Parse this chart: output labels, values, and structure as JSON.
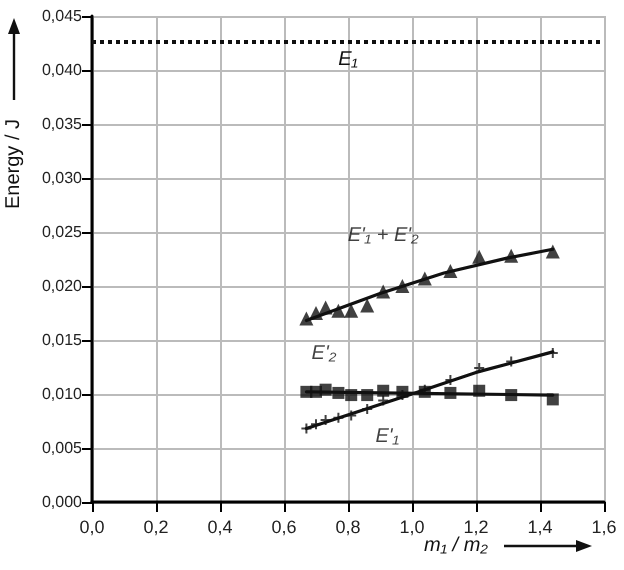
{
  "chart_data": {
    "type": "scatter",
    "ylabel": "Energy / J",
    "xlabel": "m₁ / m₂",
    "xlim": [
      0,
      1.6
    ],
    "xticks": [
      {
        "value": 0,
        "label": "0,0"
      },
      {
        "value": 0.2,
        "label": "0,2"
      },
      {
        "value": 0.4,
        "label": "0,4"
      },
      {
        "value": 0.6,
        "label": "0,6"
      },
      {
        "value": 0.8,
        "label": "0,8"
      },
      {
        "value": 1,
        "label": "1,0"
      },
      {
        "value": 1.2,
        "label": "1,2"
      },
      {
        "value": 1.4,
        "label": "1,4"
      },
      {
        "value": 1.6,
        "label": "1,6"
      }
    ],
    "ylim": [
      0,
      0.045
    ],
    "yticks": [
      {
        "value": 0,
        "label": "0,000"
      },
      {
        "value": 0.005,
        "label": "0,005"
      },
      {
        "value": 0.01,
        "label": "0,010"
      },
      {
        "value": 0.015,
        "label": "0,015"
      },
      {
        "value": 0.02,
        "label": "0,020"
      },
      {
        "value": 0.025,
        "label": "0,025"
      },
      {
        "value": 0.03,
        "label": "0,030"
      },
      {
        "value": 0.035,
        "label": "0,035"
      },
      {
        "value": 0.04,
        "label": "0,040"
      },
      {
        "value": 0.045,
        "label": "0,045"
      }
    ],
    "grid": true,
    "series": [
      {
        "name": "E'₁ + E'₂",
        "marker": "triangle",
        "color": "#111111",
        "x": [
          0.67,
          0.7,
          0.73,
          0.77,
          0.81,
          0.86,
          0.91,
          0.97,
          1.04,
          1.12,
          1.21,
          1.31,
          1.44
        ],
        "values": [
          0.017,
          0.0175,
          0.018,
          0.0177,
          0.0177,
          0.0182,
          0.0195,
          0.02,
          0.0207,
          0.0214,
          0.0227,
          0.0228,
          0.0232
        ]
      },
      {
        "name": "E'₂",
        "marker": "square",
        "color": "#111111",
        "x": [
          0.67,
          0.7,
          0.73,
          0.77,
          0.81,
          0.86,
          0.91,
          0.97,
          1.04,
          1.12,
          1.21,
          1.31,
          1.44
        ],
        "values": [
          0.0102,
          0.0102,
          0.0104,
          0.0101,
          0.0099,
          0.0099,
          0.0103,
          0.0102,
          0.0102,
          0.0101,
          0.0103,
          0.0099,
          0.0095
        ]
      },
      {
        "name": "E'₁",
        "marker": "cross",
        "color": "#111111",
        "x": [
          0.67,
          0.7,
          0.73,
          0.77,
          0.81,
          0.86,
          0.91,
          0.97,
          1.04,
          1.12,
          1.21,
          1.31,
          1.44
        ],
        "values": [
          0.0068,
          0.0072,
          0.0076,
          0.0078,
          0.008,
          0.0086,
          0.0094,
          0.0099,
          0.0104,
          0.0113,
          0.0124,
          0.013,
          0.0138
        ]
      },
      {
        "type": "line",
        "marker": "none",
        "line_style": "solid",
        "color": "#111111",
        "x": [
          0.67,
          0.9,
          1.1,
          1.3,
          1.44
        ],
        "values": [
          0.0168,
          0.0193,
          0.0212,
          0.0226,
          0.0234
        ]
      },
      {
        "type": "line",
        "marker": "none",
        "line_style": "solid",
        "color": "#111111",
        "x": [
          0.67,
          1.44
        ],
        "values": [
          0.0102,
          0.0099
        ]
      },
      {
        "type": "line",
        "marker": "none",
        "line_style": "solid",
        "color": "#111111",
        "x": [
          0.67,
          1.0,
          1.2,
          1.44
        ],
        "values": [
          0.0068,
          0.01,
          0.012,
          0.0139
        ]
      }
    ],
    "ref_lines": [
      {
        "axis": "y",
        "value": 0.0426,
        "label": "E₁",
        "line_style": "dotted",
        "color": "#111111"
      }
    ]
  }
}
